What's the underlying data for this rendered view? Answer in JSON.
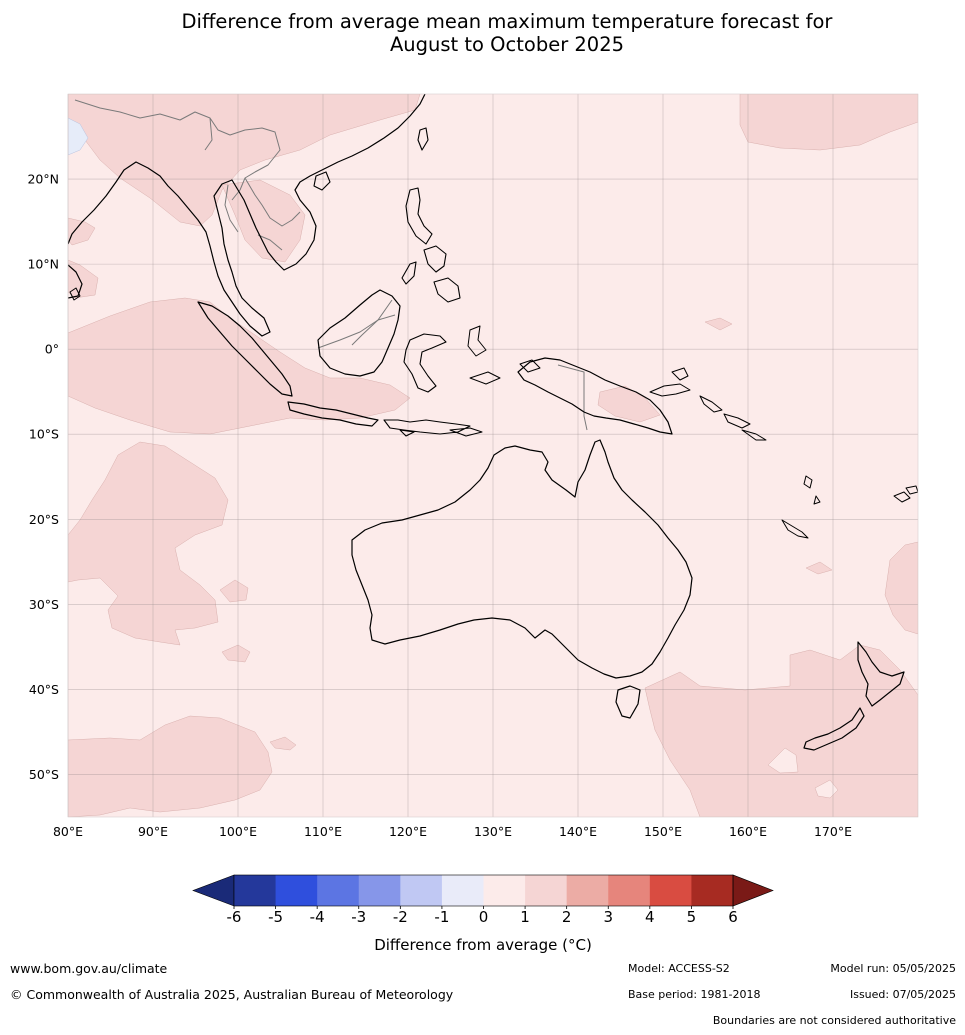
{
  "title": {
    "line1": "Difference from average mean maximum temperature forecast for",
    "line2": "August to October 2025"
  },
  "map": {
    "lat_labels": [
      "20°N",
      "10°N",
      "0°",
      "10°S",
      "20°S",
      "30°S",
      "40°S",
      "50°S"
    ],
    "lon_labels": [
      "80°E",
      "90°E",
      "100°E",
      "110°E",
      "120°E",
      "130°E",
      "140°E",
      "150°E",
      "160°E",
      "170°E"
    ],
    "extent": {
      "lon": [
        80,
        180
      ],
      "lat": [
        -55,
        30
      ]
    },
    "base_color": "#fcebea",
    "anomaly_color": "#f5d5d4",
    "cool_color": "#e6ecf9",
    "coast_color": "#000000",
    "border_color": "#7a7a7a",
    "grid_color": "#9a8f8f"
  },
  "colorbar": {
    "ticks": [
      "-6",
      "-5",
      "-4",
      "-3",
      "-2",
      "-1",
      "0",
      "1",
      "2",
      "3",
      "4",
      "5",
      "6"
    ],
    "colors": [
      "#24389b",
      "#2f4fdd",
      "#5c75e3",
      "#8696e9",
      "#c0c8f3",
      "#e9ebf9",
      "#fcebea",
      "#f5d5d4",
      "#ecaca5",
      "#e6857c",
      "#d94c41",
      "#a72b22"
    ],
    "low_extend_color": "#1a2a78",
    "high_extend_color": "#7a1a17",
    "label": "Difference from average (°C)"
  },
  "footer": {
    "website": "www.bom.gov.au/climate",
    "copyright": "© Commonwealth of Australia 2025, Australian Bureau of Meteorology",
    "model": "Model: ACCESS-S2",
    "base_period": "Base period: 1981-2018",
    "model_run": "Model run: 05/05/2025",
    "issued": "Issued: 07/05/2025",
    "disclaimer": "Boundaries are not considered authoritative"
  }
}
